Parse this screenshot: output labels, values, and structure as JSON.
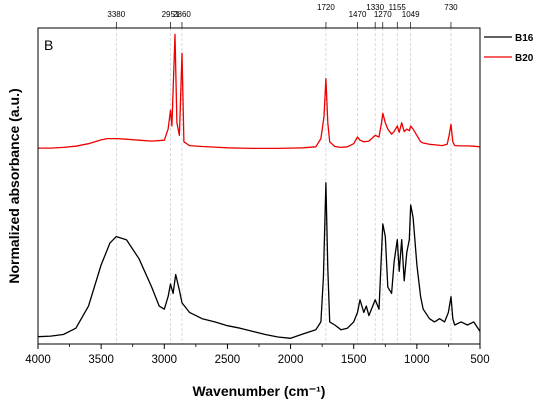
{
  "chart_data": {
    "type": "line",
    "panel_label": "B",
    "xlabel": "Wavenumber (cm⁻¹)",
    "ylabel": "Normalized absorbance (a.u.)",
    "xlim": [
      4000,
      500
    ],
    "x_reversed": true,
    "x_ticks": [
      4000,
      3500,
      3000,
      2500,
      2000,
      1500,
      1000,
      500
    ],
    "y_tick_labels": false,
    "grid": false,
    "legend_position": "top-right",
    "peak_markers": [
      "3380",
      "2951",
      "2860",
      "1720",
      "1470",
      "1330",
      "1270",
      "1155",
      "1049",
      "730"
    ],
    "series": [
      {
        "name": "B16",
        "color": "#000000",
        "points": [
          [
            4000,
            0.023
          ],
          [
            3900,
            0.025
          ],
          [
            3800,
            0.03
          ],
          [
            3700,
            0.05
          ],
          [
            3600,
            0.12
          ],
          [
            3500,
            0.25
          ],
          [
            3430,
            0.32
          ],
          [
            3380,
            0.34
          ],
          [
            3300,
            0.33
          ],
          [
            3200,
            0.27
          ],
          [
            3100,
            0.18
          ],
          [
            3040,
            0.12
          ],
          [
            3000,
            0.11
          ],
          [
            2970,
            0.15
          ],
          [
            2951,
            0.19
          ],
          [
            2930,
            0.16
          ],
          [
            2910,
            0.22
          ],
          [
            2880,
            0.17
          ],
          [
            2860,
            0.13
          ],
          [
            2800,
            0.1
          ],
          [
            2700,
            0.08
          ],
          [
            2600,
            0.07
          ],
          [
            2500,
            0.058
          ],
          [
            2400,
            0.05
          ],
          [
            2300,
            0.04
          ],
          [
            2200,
            0.03
          ],
          [
            2100,
            0.022
          ],
          [
            2000,
            0.018
          ],
          [
            1900,
            0.032
          ],
          [
            1800,
            0.045
          ],
          [
            1760,
            0.07
          ],
          [
            1740,
            0.21
          ],
          [
            1720,
            0.51
          ],
          [
            1705,
            0.24
          ],
          [
            1690,
            0.07
          ],
          [
            1650,
            0.06
          ],
          [
            1600,
            0.045
          ],
          [
            1550,
            0.05
          ],
          [
            1500,
            0.07
          ],
          [
            1470,
            0.1
          ],
          [
            1450,
            0.14
          ],
          [
            1420,
            0.1
          ],
          [
            1400,
            0.12
          ],
          [
            1380,
            0.09
          ],
          [
            1330,
            0.14
          ],
          [
            1300,
            0.11
          ],
          [
            1270,
            0.38
          ],
          [
            1250,
            0.34
          ],
          [
            1230,
            0.18
          ],
          [
            1200,
            0.16
          ],
          [
            1180,
            0.26
          ],
          [
            1155,
            0.33
          ],
          [
            1140,
            0.23
          ],
          [
            1120,
            0.33
          ],
          [
            1100,
            0.2
          ],
          [
            1080,
            0.29
          ],
          [
            1060,
            0.33
          ],
          [
            1049,
            0.44
          ],
          [
            1030,
            0.4
          ],
          [
            1000,
            0.25
          ],
          [
            970,
            0.15
          ],
          [
            950,
            0.11
          ],
          [
            900,
            0.08
          ],
          [
            860,
            0.07
          ],
          [
            820,
            0.08
          ],
          [
            780,
            0.07
          ],
          [
            750,
            0.1
          ],
          [
            730,
            0.15
          ],
          [
            715,
            0.08
          ],
          [
            700,
            0.06
          ],
          [
            650,
            0.07
          ],
          [
            600,
            0.06
          ],
          [
            550,
            0.07
          ],
          [
            500,
            0.04
          ]
        ]
      },
      {
        "name": "B20",
        "color": "#ee0000",
        "points": [
          [
            4000,
            0.62
          ],
          [
            3900,
            0.62
          ],
          [
            3800,
            0.622
          ],
          [
            3700,
            0.626
          ],
          [
            3600,
            0.634
          ],
          [
            3500,
            0.646
          ],
          [
            3450,
            0.65
          ],
          [
            3380,
            0.65
          ],
          [
            3300,
            0.648
          ],
          [
            3200,
            0.645
          ],
          [
            3100,
            0.642
          ],
          [
            3000,
            0.645
          ],
          [
            2970,
            0.68
          ],
          [
            2951,
            0.74
          ],
          [
            2940,
            0.69
          ],
          [
            2930,
            0.8
          ],
          [
            2915,
            0.98
          ],
          [
            2900,
            0.7
          ],
          [
            2880,
            0.66
          ],
          [
            2860,
            0.92
          ],
          [
            2845,
            0.64
          ],
          [
            2800,
            0.628
          ],
          [
            2700,
            0.625
          ],
          [
            2600,
            0.623
          ],
          [
            2500,
            0.621
          ],
          [
            2400,
            0.62
          ],
          [
            2300,
            0.619
          ],
          [
            2200,
            0.619
          ],
          [
            2100,
            0.619
          ],
          [
            2000,
            0.62
          ],
          [
            1900,
            0.621
          ],
          [
            1800,
            0.624
          ],
          [
            1760,
            0.65
          ],
          [
            1735,
            0.72
          ],
          [
            1720,
            0.84
          ],
          [
            1705,
            0.7
          ],
          [
            1690,
            0.64
          ],
          [
            1650,
            0.625
          ],
          [
            1600,
            0.622
          ],
          [
            1550,
            0.624
          ],
          [
            1500,
            0.634
          ],
          [
            1470,
            0.655
          ],
          [
            1450,
            0.645
          ],
          [
            1420,
            0.64
          ],
          [
            1380,
            0.642
          ],
          [
            1330,
            0.66
          ],
          [
            1300,
            0.655
          ],
          [
            1280,
            0.7
          ],
          [
            1270,
            0.73
          ],
          [
            1250,
            0.7
          ],
          [
            1230,
            0.68
          ],
          [
            1200,
            0.664
          ],
          [
            1180,
            0.672
          ],
          [
            1155,
            0.69
          ],
          [
            1140,
            0.67
          ],
          [
            1120,
            0.7
          ],
          [
            1100,
            0.672
          ],
          [
            1080,
            0.68
          ],
          [
            1060,
            0.675
          ],
          [
            1049,
            0.69
          ],
          [
            1030,
            0.68
          ],
          [
            1000,
            0.66
          ],
          [
            970,
            0.64
          ],
          [
            950,
            0.636
          ],
          [
            900,
            0.632
          ],
          [
            850,
            0.63
          ],
          [
            800,
            0.628
          ],
          [
            760,
            0.632
          ],
          [
            745,
            0.66
          ],
          [
            730,
            0.695
          ],
          [
            715,
            0.64
          ],
          [
            700,
            0.628
          ],
          [
            650,
            0.627
          ],
          [
            600,
            0.627
          ],
          [
            550,
            0.626
          ],
          [
            500,
            0.624
          ]
        ]
      }
    ]
  }
}
